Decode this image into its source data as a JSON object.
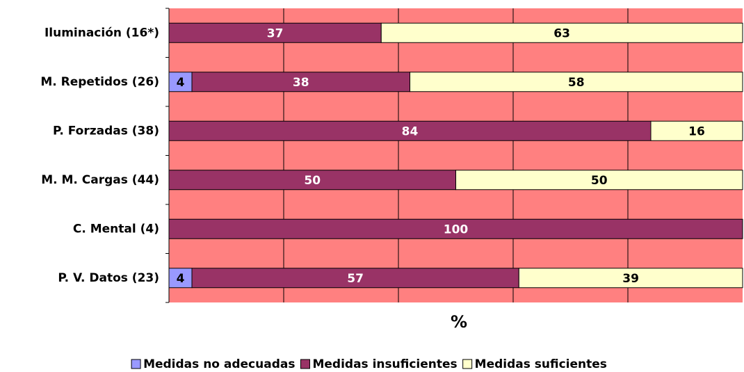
{
  "chart_data": {
    "type": "stacked-bar-horizontal",
    "categories": [
      "Iluminación (16*)",
      "M. Repetidos (26)",
      "P. Forzadas (38)",
      "M. M. Cargas (44)",
      "C. Mental (4)",
      "P. V. Datos (23)"
    ],
    "series": [
      {
        "name": "Medidas no adecuadas",
        "color": "#9999ff",
        "label_color": "#000000",
        "values": [
          0,
          4,
          0,
          0,
          0,
          4
        ]
      },
      {
        "name": "Medidas insuficientes",
        "color": "#993366",
        "label_color": "#ffffff",
        "values": [
          37,
          38,
          84,
          50,
          100,
          57
        ]
      },
      {
        "name": "Medidas suficientes",
        "color": "#ffffcc",
        "label_color": "#000000",
        "values": [
          63,
          58,
          16,
          50,
          0,
          39
        ]
      }
    ],
    "x_label": "%",
    "xlim": [
      0,
      100
    ],
    "xticks": [
      20,
      40,
      60,
      80
    ],
    "grid": true,
    "plot_background": "#ff8080",
    "legend": "bottom"
  }
}
